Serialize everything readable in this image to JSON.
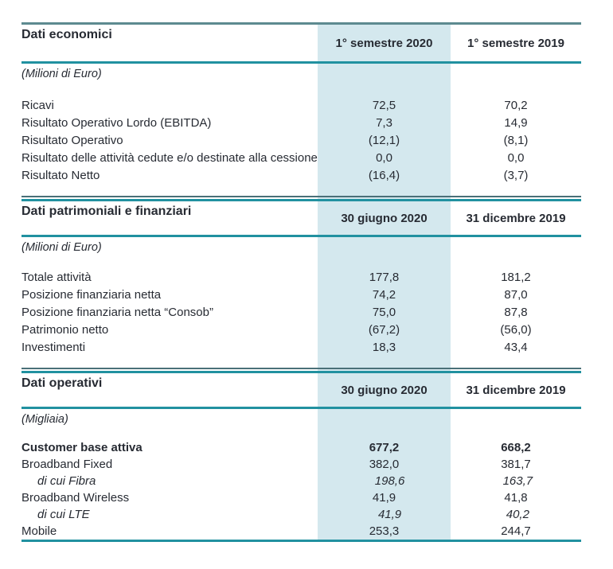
{
  "table": {
    "sections": [
      {
        "title": "Dati economici",
        "col1": "1° semestre 2020",
        "col2": "1° semestre 2019",
        "unit": "(Milioni di Euro)",
        "rows": [
          {
            "label": "Ricavi",
            "v1": "72,5",
            "v2": "70,2"
          },
          {
            "label": "Risultato Operativo Lordo (EBITDA)",
            "v1": "7,3",
            "v2": "14,9"
          },
          {
            "label": "Risultato Operativo",
            "v1": "(12,1)",
            "v2": "(8,1)"
          },
          {
            "label": "Risultato delle attività cedute e/o destinate alla cessione",
            "v1": "0,0",
            "v2": "0,0"
          },
          {
            "label": "Risultato Netto",
            "v1": "(16,4)",
            "v2": "(3,7)"
          }
        ]
      },
      {
        "title": "Dati patrimoniali e finanziari",
        "col1": "30 giugno 2020",
        "col2": "31 dicembre 2019",
        "unit": "(Milioni di Euro)",
        "rows": [
          {
            "label": "Totale attività",
            "v1": "177,8",
            "v2": "181,2"
          },
          {
            "label": "Posizione finanziaria netta",
            "v1": "74,2",
            "v2": "87,0"
          },
          {
            "label": "Posizione finanziaria netta “Consob”",
            "v1": "75,0",
            "v2": "87,8"
          },
          {
            "label": "Patrimonio netto",
            "v1": "(67,2)",
            "v2": "(56,0)"
          },
          {
            "label": "Investimenti",
            "v1": "18,3",
            "v2": "43,4"
          }
        ]
      },
      {
        "title": "Dati operativi",
        "col1": "30 giugno 2020",
        "col2": "31 dicembre 2019",
        "unit": "(Migliaia)",
        "rows": [
          {
            "label": "Customer base attiva",
            "v1": "677,2",
            "v2": "668,2"
          },
          {
            "label": "Broadband Fixed",
            "v1": "382,0",
            "v2": "381,7"
          },
          {
            "label": "di cui Fibra",
            "v1": "198,6",
            "v2": "163,7"
          },
          {
            "label": "Broadband Wireless",
            "v1": "41,9",
            "v2": "41,8"
          },
          {
            "label": "di cui LTE",
            "v1": "41,9",
            "v2": "40,2"
          },
          {
            "label": "Mobile",
            "v1": "253,3",
            "v2": "244,7"
          }
        ]
      }
    ],
    "colors": {
      "highlight_column": "#d4e8ee",
      "teal_line": "#2191a0",
      "top_line": "#5d8a90",
      "dark_thin_line": "#4a7078",
      "text": "#272b33"
    }
  }
}
